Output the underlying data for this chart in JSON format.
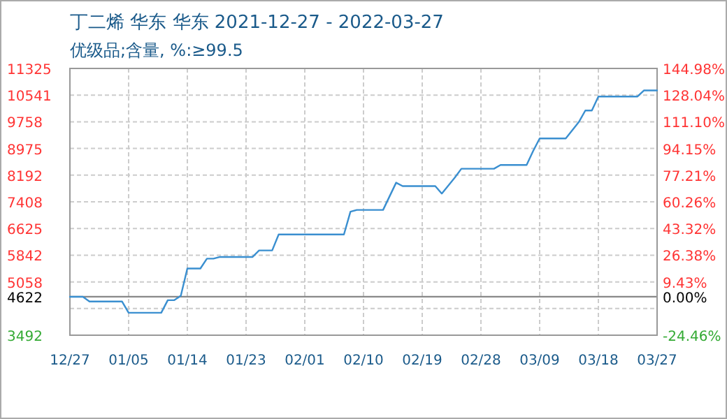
{
  "chart_data": {
    "type": "line",
    "title": "丁二烯 华东 华东 2021-12-27 - 2022-03-27",
    "subtitle": "优级品;含量, %:≥99.5",
    "x": [
      "2021-12-27",
      "2021-12-29",
      "2021-12-30",
      "2022-01-04",
      "2022-01-05",
      "2022-01-10",
      "2022-01-11",
      "2022-01-12",
      "2022-01-13",
      "2022-01-14",
      "2022-01-16",
      "2022-01-17",
      "2022-01-18",
      "2022-01-19",
      "2022-01-24",
      "2022-01-25",
      "2022-01-27",
      "2022-01-28",
      "2022-02-07",
      "2022-02-08",
      "2022-02-09",
      "2022-02-13",
      "2022-02-15",
      "2022-02-16",
      "2022-02-21",
      "2022-02-22",
      "2022-02-24",
      "2022-02-25",
      "2022-03-02",
      "2022-03-03",
      "2022-03-07",
      "2022-03-08",
      "2022-03-09",
      "2022-03-13",
      "2022-03-15",
      "2022-03-16",
      "2022-03-17",
      "2022-03-18",
      "2022-03-24",
      "2022-03-25",
      "2022-03-27"
    ],
    "series": [
      {
        "color": "#3a8fd0",
        "values": [
          4620,
          4620,
          4480,
          4480,
          4150,
          4150,
          4520,
          4520,
          4650,
          5450,
          5450,
          5740,
          5740,
          5790,
          5790,
          5980,
          5980,
          6450,
          6450,
          7120,
          7170,
          7170,
          7970,
          7870,
          7870,
          7650,
          8120,
          8380,
          8380,
          8490,
          8490,
          8900,
          9270,
          9270,
          9750,
          10090,
          10090,
          10500,
          10500,
          10680,
          10680
        ]
      }
    ],
    "xlim": [
      "2021-12-27",
      "2022-03-27"
    ],
    "xticks": [
      {
        "value": "2021-12-27",
        "label": "12/27"
      },
      {
        "value": "2022-01-05",
        "label": "01/05"
      },
      {
        "value": "2022-01-14",
        "label": "01/14"
      },
      {
        "value": "2022-01-23",
        "label": "01/23"
      },
      {
        "value": "2022-02-01",
        "label": "02/01"
      },
      {
        "value": "2022-02-10",
        "label": "02/10"
      },
      {
        "value": "2022-02-19",
        "label": "02/19"
      },
      {
        "value": "2022-02-28",
        "label": "02/28"
      },
      {
        "value": "2022-03-09",
        "label": "03/09"
      },
      {
        "value": "2022-03-18",
        "label": "03/18"
      },
      {
        "value": "2022-03-27",
        "label": "03/27"
      }
    ],
    "ylim": [
      3492,
      11325
    ],
    "yticks": [
      11325,
      10541,
      9758,
      8975,
      8192,
      7408,
      6625,
      5842,
      5058,
      {
        "value": 4275,
        "label": null
      },
      3492
    ],
    "y2lim": [
      -24.46,
      144.98
    ],
    "y2ticks": [
      {
        "value": 144.98,
        "label": "144.98%"
      },
      {
        "value": 128.04,
        "label": "128.04%"
      },
      {
        "value": 111.1,
        "label": "111.10%"
      },
      {
        "value": 94.15,
        "label": "94.15%"
      },
      {
        "value": 77.21,
        "label": "77.21%"
      },
      {
        "value": 60.26,
        "label": "60.26%"
      },
      {
        "value": 43.32,
        "label": "43.32%"
      },
      {
        "value": 26.38,
        "label": "26.38%"
      },
      {
        "value": 9.43,
        "label": "9.43%"
      },
      {
        "value": 0,
        "label": "0.00%"
      },
      {
        "value": -24.46,
        "label": "-24.46%"
      }
    ],
    "ref_lines": [
      {
        "axis": "y",
        "value": 4622,
        "label": "4622",
        "color": "#888888"
      }
    ],
    "grid": true,
    "line_style": "solid",
    "marker": "none"
  }
}
